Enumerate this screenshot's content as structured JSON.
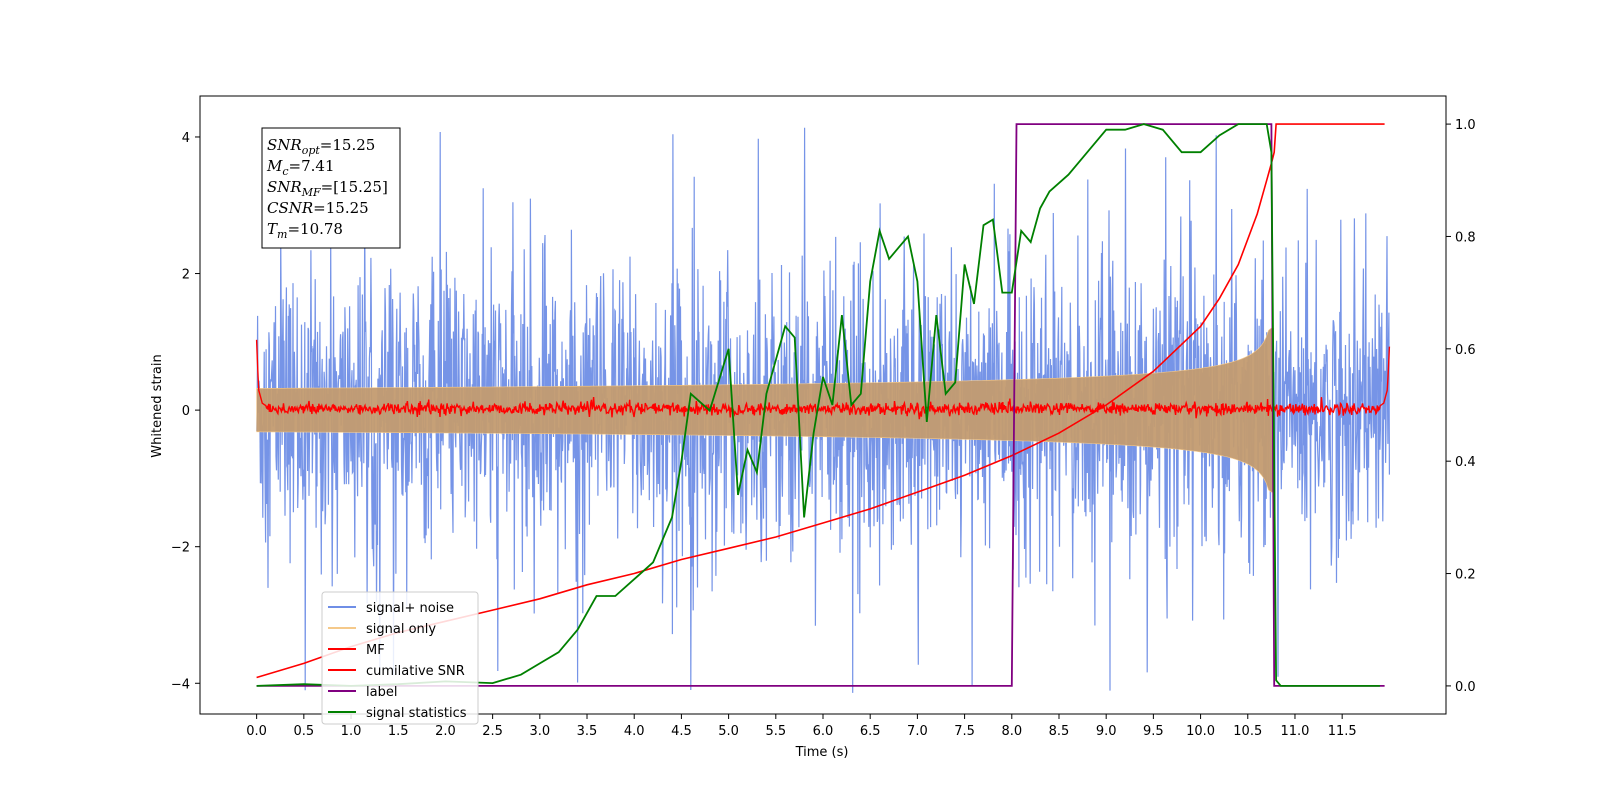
{
  "chart_data": {
    "type": "line",
    "xlabel": "Time (s)",
    "ylabel": "Whitened strain",
    "xlim": [
      -0.6,
      12.6
    ],
    "ylim": [
      -4.45,
      4.6
    ],
    "y2lim": [
      -0.05,
      1.05
    ],
    "xticks": [
      "0.0",
      "0.5",
      "1.0",
      "1.5",
      "2.0",
      "2.5",
      "3.0",
      "3.5",
      "4.0",
      "4.5",
      "5.0",
      "5.5",
      "6.0",
      "6.5",
      "7.0",
      "7.5",
      "8.0",
      "8.5",
      "9.0",
      "9.5",
      "10.0",
      "10.5",
      "11.0",
      "11.5"
    ],
    "yticks": [
      "−4",
      "−2",
      "0",
      "2",
      "4"
    ],
    "y2ticks": [
      "0.0",
      "0.2",
      "0.4",
      "0.6",
      "0.8",
      "1.0"
    ],
    "annotation": {
      "lines": [
        {
          "sym": "SNR",
          "sub": "opt",
          "val": "=15.25"
        },
        {
          "sym": "M",
          "sub": "c",
          "val": "=7.41"
        },
        {
          "sym": "SNR",
          "sub": "MF",
          "val": "=[15.25]"
        },
        {
          "sym": "CSNR",
          "sub": "",
          "val": "=15.25"
        },
        {
          "sym": "T",
          "sub": "m",
          "val": "=10.78"
        }
      ]
    },
    "legend": {
      "placement": "lower-left",
      "entries": [
        {
          "label": "signal+ noise",
          "color": "#6f8ee6"
        },
        {
          "label": "signal only",
          "color": "#f5c98a"
        },
        {
          "label": "MF",
          "color": "#ff0000"
        },
        {
          "label": "cumilative SNR",
          "color": "#ff0000"
        },
        {
          "label": "label",
          "color": "#800080"
        },
        {
          "label": "signal statistics",
          "color": "#008000"
        }
      ]
    },
    "noise": {
      "x_range": [
        0.0,
        12.0
      ],
      "typical_amplitude": 1.6,
      "max_amplitude": 4.15
    },
    "signal_only": {
      "x_range": [
        0.0,
        10.78
      ],
      "envelope_end": 1.2
    },
    "series": [
      {
        "name": "cumilative SNR",
        "axis": "right",
        "x": [
          0.0,
          0.5,
          1.0,
          1.5,
          2.0,
          2.5,
          3.0,
          3.5,
          4.0,
          4.5,
          5.0,
          5.5,
          6.0,
          6.5,
          7.0,
          7.5,
          8.0,
          8.5,
          9.0,
          9.5,
          10.0,
          10.2,
          10.4,
          10.6,
          10.7,
          10.75,
          10.78,
          10.8,
          11.0,
          11.5,
          11.95
        ],
        "values": [
          0.015,
          0.04,
          0.07,
          0.095,
          0.115,
          0.135,
          0.155,
          0.18,
          0.2,
          0.225,
          0.245,
          0.265,
          0.29,
          0.315,
          0.345,
          0.375,
          0.41,
          0.45,
          0.5,
          0.56,
          0.64,
          0.69,
          0.75,
          0.84,
          0.9,
          0.93,
          0.95,
          1.0,
          1.0,
          1.0,
          1.0
        ]
      },
      {
        "name": "label",
        "axis": "right",
        "x": [
          0.0,
          8.0,
          8.05,
          10.75,
          10.78,
          11.95
        ],
        "values": [
          0.0,
          0.0,
          1.0,
          1.0,
          0.0,
          0.0
        ]
      },
      {
        "name": "signal statistics",
        "axis": "right",
        "x": [
          0.0,
          0.5,
          1.0,
          1.5,
          2.0,
          2.5,
          2.8,
          3.0,
          3.2,
          3.4,
          3.6,
          3.8,
          4.0,
          4.2,
          4.4,
          4.5,
          4.6,
          4.8,
          5.0,
          5.1,
          5.2,
          5.3,
          5.4,
          5.5,
          5.6,
          5.7,
          5.8,
          5.9,
          6.0,
          6.1,
          6.2,
          6.3,
          6.4,
          6.5,
          6.6,
          6.7,
          6.8,
          6.9,
          7.0,
          7.1,
          7.2,
          7.3,
          7.4,
          7.5,
          7.6,
          7.7,
          7.8,
          7.9,
          8.0,
          8.1,
          8.2,
          8.3,
          8.4,
          8.6,
          8.8,
          9.0,
          9.2,
          9.4,
          9.6,
          9.8,
          10.0,
          10.2,
          10.4,
          10.6,
          10.7,
          10.75,
          10.8,
          10.85,
          11.0,
          11.5,
          11.9
        ],
        "values": [
          0.0,
          0.003,
          0.0,
          0.003,
          0.008,
          0.005,
          0.02,
          0.04,
          0.06,
          0.1,
          0.16,
          0.16,
          0.19,
          0.22,
          0.3,
          0.4,
          0.52,
          0.49,
          0.6,
          0.34,
          0.42,
          0.38,
          0.52,
          0.58,
          0.64,
          0.62,
          0.3,
          0.45,
          0.55,
          0.5,
          0.66,
          0.5,
          0.52,
          0.72,
          0.81,
          0.76,
          0.78,
          0.8,
          0.72,
          0.47,
          0.66,
          0.52,
          0.54,
          0.75,
          0.68,
          0.82,
          0.83,
          0.7,
          0.7,
          0.81,
          0.79,
          0.85,
          0.88,
          0.91,
          0.95,
          0.99,
          0.99,
          1.0,
          0.99,
          0.95,
          0.95,
          0.98,
          1.0,
          1.0,
          1.0,
          0.95,
          0.01,
          0.0,
          0.0,
          0.0,
          0.0
        ]
      },
      {
        "name": "MF",
        "axis": "left",
        "x": [
          0.0,
          0.02,
          0.06,
          0.15,
          11.85,
          11.94,
          11.98,
          12.0
        ],
        "values": [
          1.03,
          0.3,
          0.1,
          0.02,
          0.02,
          0.1,
          0.3,
          0.93
        ]
      }
    ]
  }
}
